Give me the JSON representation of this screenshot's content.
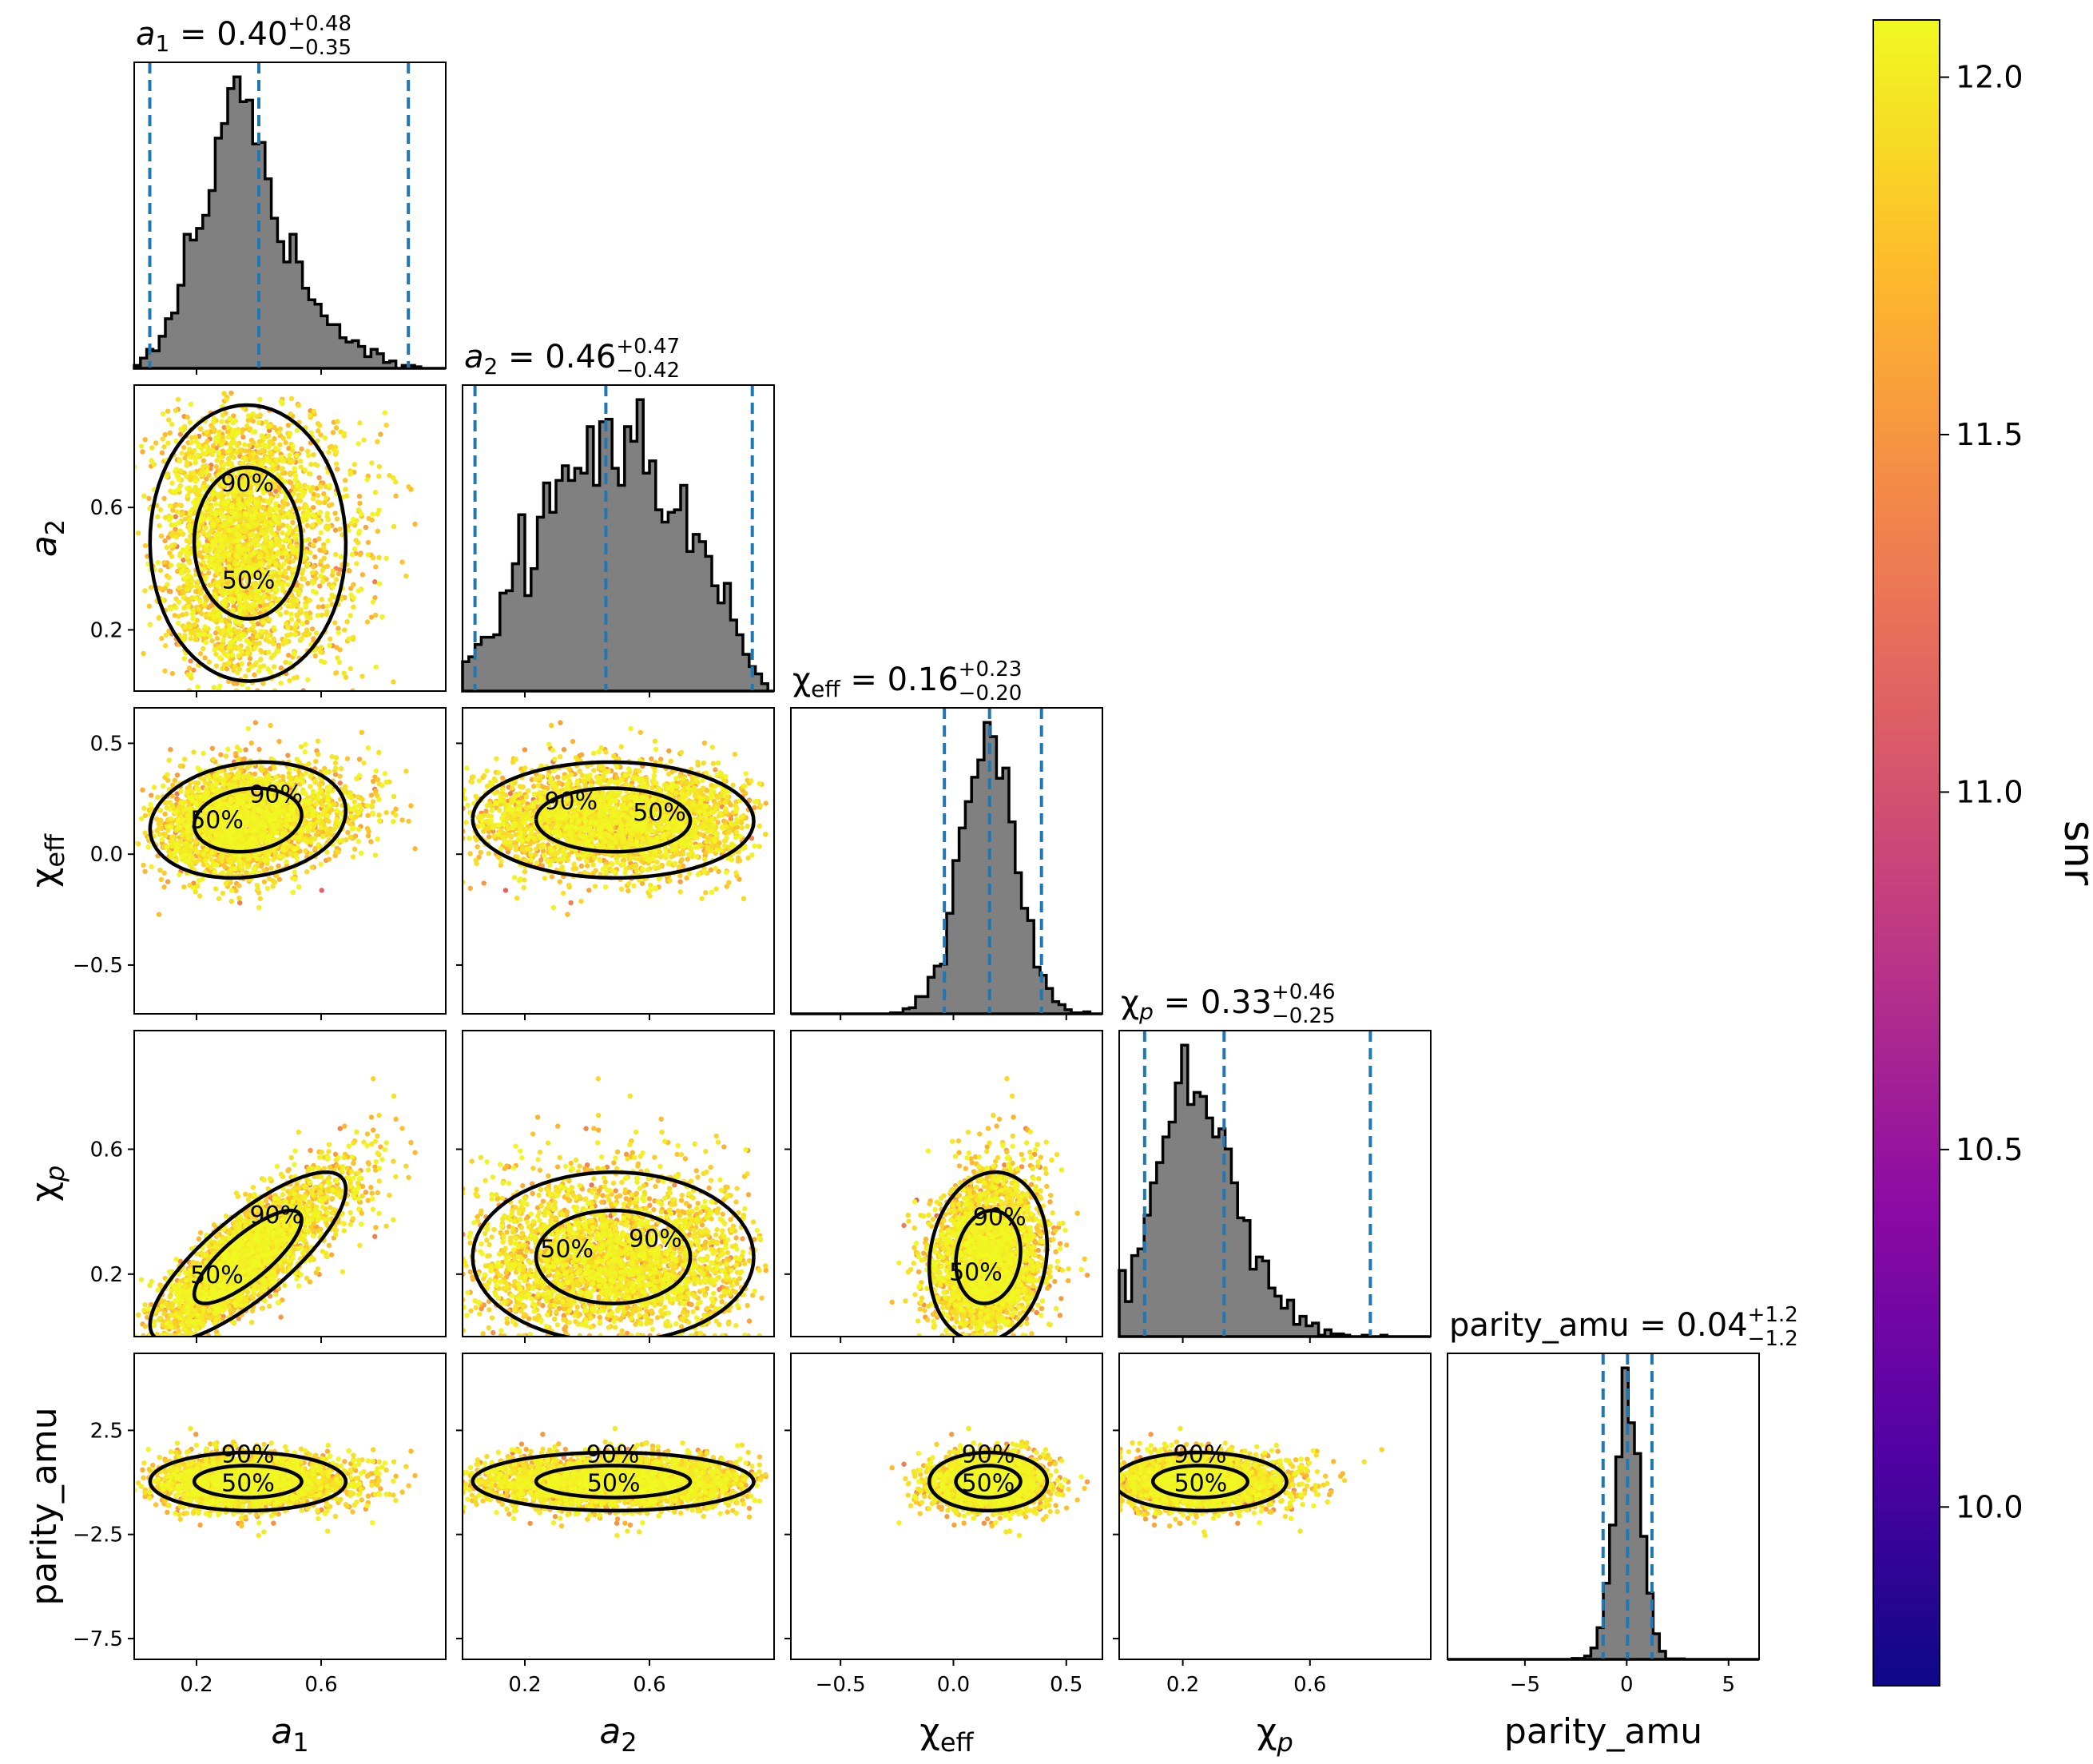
{
  "chart_data": {
    "type": "scatter",
    "subtype": "corner-plot",
    "parameters": [
      {
        "key": "a_1",
        "axis_label": "a",
        "axis_label_sub": "1",
        "sub_italic": false,
        "title_value": "0.40",
        "title_plus": "+0.48",
        "title_minus": "−0.35",
        "range": [
          0.0,
          1.0
        ],
        "median": 0.4,
        "q_low": 0.05,
        "q_high": 0.88,
        "ticks": [
          0.2,
          0.6
        ],
        "tick_labels": [
          "0.2",
          "0.6"
        ]
      },
      {
        "key": "a_2",
        "axis_label": "a",
        "axis_label_sub": "2",
        "sub_italic": false,
        "title_value": "0.46",
        "title_plus": "+0.47",
        "title_minus": "−0.42",
        "range": [
          0.0,
          1.0
        ],
        "median": 0.46,
        "q_low": 0.04,
        "q_high": 0.93,
        "ticks": [
          0.2,
          0.6
        ],
        "tick_labels": [
          "0.2",
          "0.6"
        ]
      },
      {
        "key": "chi_eff",
        "axis_label": "χ",
        "axis_label_sub": "eff",
        "sub_italic": false,
        "title_value": "0.16",
        "title_plus": "+0.23",
        "title_minus": "−0.20",
        "range": [
          -0.72,
          0.66
        ],
        "median": 0.16,
        "q_low": -0.04,
        "q_high": 0.39,
        "ticks": [
          -0.5,
          0.0,
          0.5
        ],
        "tick_labels": [
          "−0.5",
          "0.0",
          "0.5"
        ]
      },
      {
        "key": "chi_p",
        "axis_label": "χ",
        "axis_label_sub": "p",
        "sub_italic": true,
        "title_value": "0.33",
        "title_plus": "+0.46",
        "title_minus": "−0.25",
        "range": [
          0.0,
          0.98
        ],
        "median": 0.33,
        "q_low": 0.08,
        "q_high": 0.79,
        "ticks": [
          0.2,
          0.6
        ],
        "tick_labels": [
          "0.2",
          "0.6"
        ]
      },
      {
        "key": "parity_amu",
        "axis_label": "parity_amu",
        "axis_label_sub": "",
        "sub_italic": false,
        "title_value": "0.04",
        "title_plus": "+1.2",
        "title_minus": "−1.2",
        "range": [
          -8.8,
          6.5
        ],
        "median": 0.04,
        "q_low": -1.16,
        "q_high": 1.24,
        "ticks": [
          -5,
          0,
          5
        ],
        "tick_labels": [
          "−5",
          "0",
          "5"
        ],
        "y_range": [
          -8.5,
          6.2
        ],
        "y_ticks": [
          2.5,
          -2.5,
          -7.5
        ],
        "y_tick_labels": [
          "2.5",
          "−2.5",
          "−7.5"
        ]
      }
    ],
    "title_prefix_tokens": {
      "equals": " = "
    },
    "contour_levels": [
      "50%",
      "90%"
    ],
    "colorbar": {
      "label": "snr",
      "range": [
        9.75,
        12.08
      ],
      "ticks": [
        10.0,
        10.5,
        11.0,
        11.5,
        12.0
      ],
      "tick_labels": [
        "10.0",
        "10.5",
        "11.0",
        "11.5",
        "12.0"
      ],
      "colormap": "plasma"
    },
    "grid": false,
    "legend": "none"
  },
  "colors": {
    "hist_fill": "#808080",
    "hist_edge": "#000000",
    "quantile_line": "#1f77b4",
    "contour": "#000000",
    "plasma_stops": [
      "#0d0887",
      "#5302a3",
      "#8b0aa5",
      "#b83289",
      "#db5c68",
      "#f48849",
      "#febd2a",
      "#f0f921"
    ]
  }
}
